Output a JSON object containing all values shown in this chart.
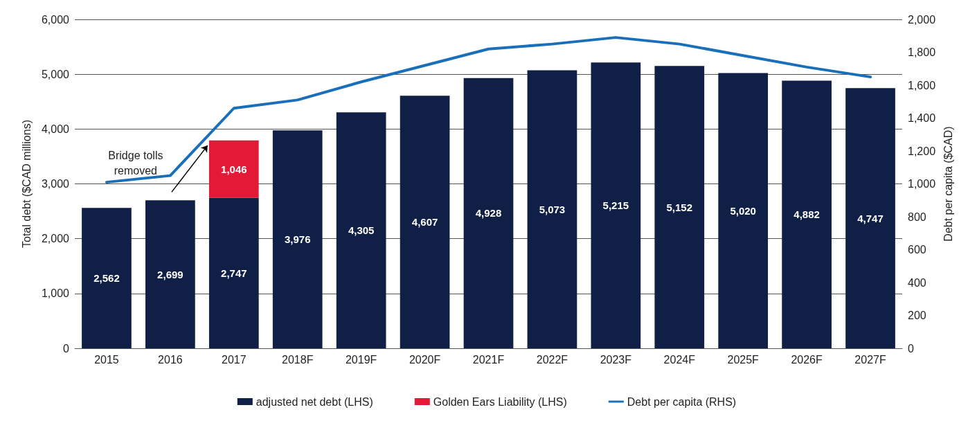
{
  "chart_data": {
    "type": "bar",
    "stacked": true,
    "categories": [
      "2015",
      "2016",
      "2017",
      "2018F",
      "2019F",
      "2020F",
      "2021F",
      "2022F",
      "2023F",
      "2024F",
      "2025F",
      "2026F",
      "2027F"
    ],
    "series": [
      {
        "name": "adjusted net debt (LHS)",
        "color": "#0f1f45",
        "values": [
          2562,
          2699,
          2747,
          3976,
          4305,
          4607,
          4928,
          5073,
          5215,
          5152,
          5020,
          4882,
          4747
        ],
        "value_labels": [
          "2,562",
          "2,699",
          "2,747",
          "3,976",
          "4,305",
          "4,607",
          "4,928",
          "5,073",
          "5,215",
          "5,152",
          "5,020",
          "4,882",
          "4,747"
        ]
      },
      {
        "name": "Golden Ears Liability (LHS)",
        "color": "#e31937",
        "values": [
          null,
          null,
          1046,
          null,
          null,
          null,
          null,
          null,
          null,
          null,
          null,
          null,
          null
        ],
        "value_labels": [
          null,
          null,
          "1,046",
          null,
          null,
          null,
          null,
          null,
          null,
          null,
          null,
          null,
          null
        ]
      },
      {
        "name": "Debt per capita (RHS)",
        "type": "line",
        "axis": "y2",
        "color": "#1a6fba",
        "values": [
          1010,
          1050,
          1460,
          1510,
          1620,
          1720,
          1820,
          1850,
          1890,
          1850,
          1780,
          1710,
          1650
        ]
      }
    ],
    "ylabel": "Total debt ($CAD millions)",
    "y2label": "Debt per capita ($CAD)",
    "ylim": [
      0,
      6000
    ],
    "yticks": [
      0,
      {
        "value": 1000,
        "label": "1,000"
      },
      {
        "value": 2000,
        "label": "2,000"
      },
      {
        "value": 3000,
        "label": "3,000"
      },
      {
        "value": 4000,
        "label": "4,000"
      },
      {
        "value": 5000,
        "label": "5,000"
      },
      {
        "value": 6000,
        "label": "6,000"
      }
    ],
    "y2lim": [
      0,
      2000
    ],
    "y2ticks": [
      0,
      200,
      400,
      600,
      800,
      {
        "value": 1000,
        "label": "1,000"
      },
      {
        "value": 1200,
        "label": "1,200"
      },
      {
        "value": 1400,
        "label": "1,400"
      },
      {
        "value": 1600,
        "label": "1,600"
      },
      {
        "value": 1800,
        "label": "1,800"
      },
      {
        "value": 2000,
        "label": "2,000"
      }
    ],
    "annotations": [
      "Bridge tolls\nremoved"
    ],
    "grid": "y",
    "legend": "bottom",
    "marker": "none",
    "line_style": "solid"
  }
}
